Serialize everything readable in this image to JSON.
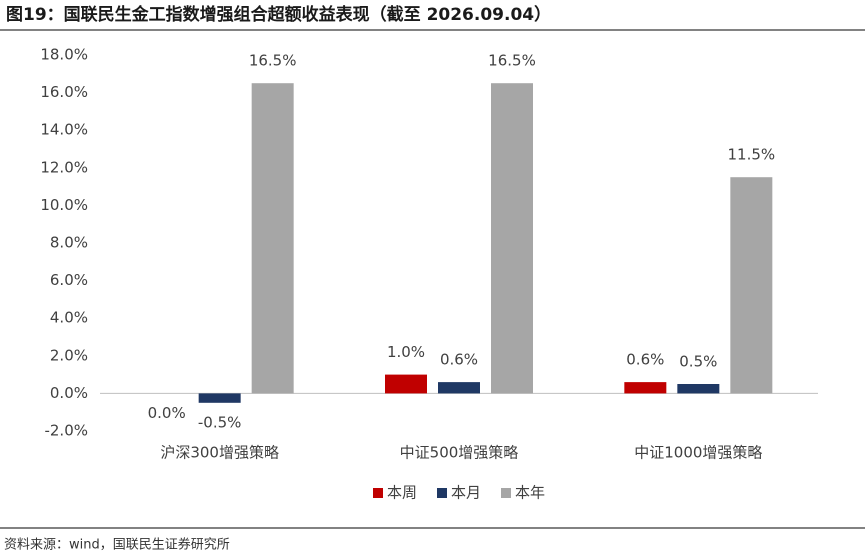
{
  "chart_data": {
    "type": "bar",
    "title": "图19：国联民生金工指数增强组合超额收益表现（截至 2026.09.04）",
    "source": "资料来源：wind，国联民生证券研究所",
    "categories": [
      "沪深300增强策略",
      "中证500增强策略",
      "中证1000增强策略"
    ],
    "series": [
      {
        "name": "本周",
        "color": "#c00000",
        "values": [
          0.0,
          1.0,
          0.6
        ],
        "value_labels": [
          "0.0%",
          "1.0%",
          "0.6%"
        ]
      },
      {
        "name": "本月",
        "color": "#1f3864",
        "values": [
          -0.5,
          0.6,
          0.5
        ],
        "value_labels": [
          "-0.5%",
          "0.6%",
          "0.5%"
        ]
      },
      {
        "name": "本年",
        "color": "#a6a6a6",
        "values": [
          16.5,
          16.5,
          11.5
        ],
        "value_labels": [
          "16.5%",
          "16.5%",
          "11.5%"
        ]
      }
    ],
    "ylim": [
      -2,
      18
    ],
    "yticks": [
      {
        "value": -2,
        "label": "-2.0%"
      },
      {
        "value": 0,
        "label": "0.0%"
      },
      {
        "value": 2,
        "label": "2.0%"
      },
      {
        "value": 4,
        "label": "4.0%"
      },
      {
        "value": 6,
        "label": "6.0%"
      },
      {
        "value": 8,
        "label": "8.0%"
      },
      {
        "value": 10,
        "label": "10.0%"
      },
      {
        "value": 12,
        "label": "12.0%"
      },
      {
        "value": 14,
        "label": "14.0%"
      },
      {
        "value": 16,
        "label": "16.0%"
      },
      {
        "value": 18,
        "label": "18.0%"
      }
    ],
    "grid": false,
    "legend": "bottom"
  }
}
